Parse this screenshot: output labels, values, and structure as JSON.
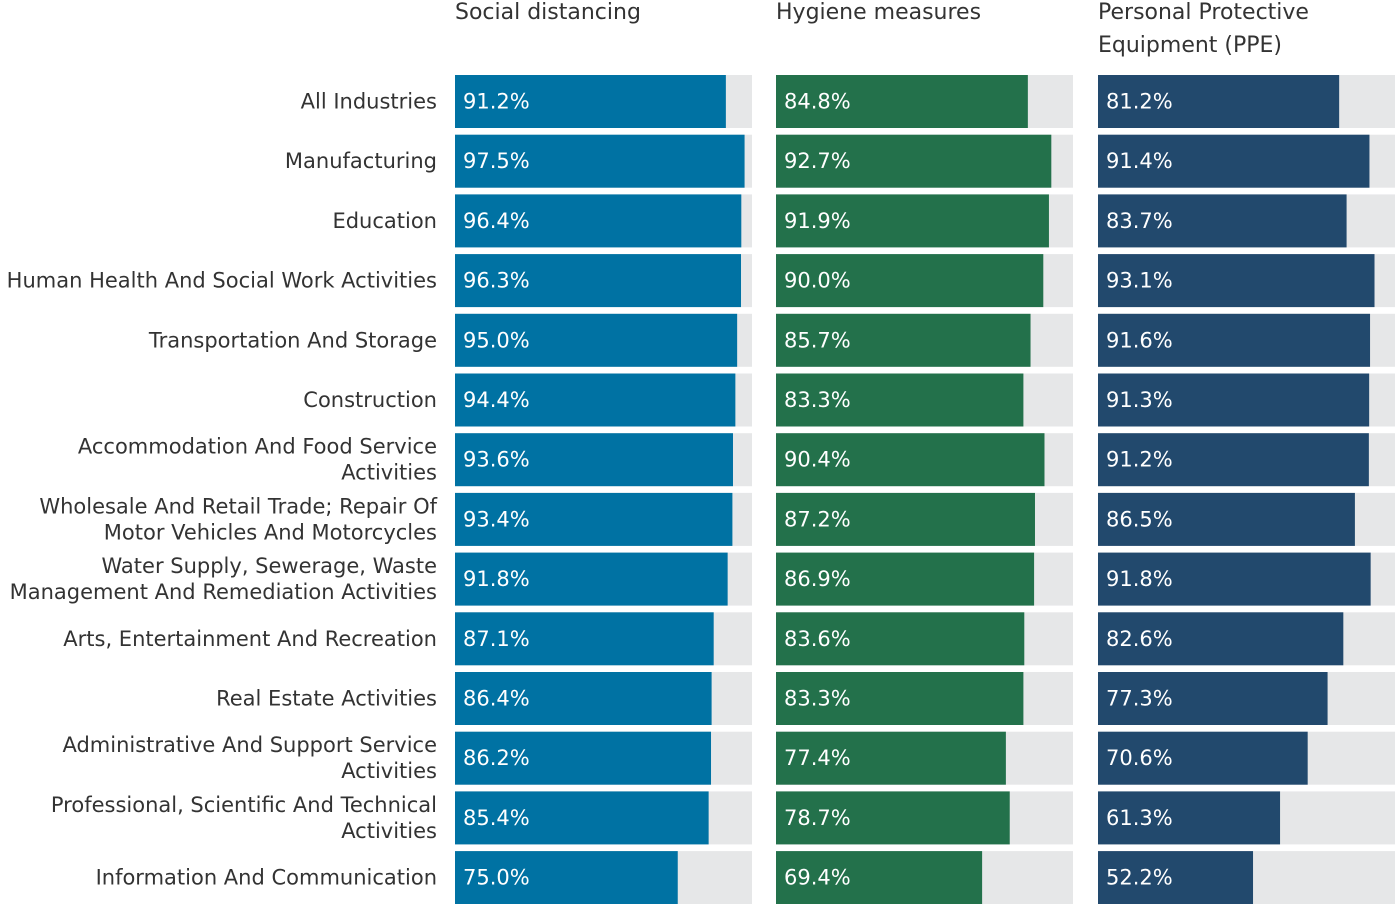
{
  "chart_data": {
    "type": "bar",
    "orientation": "horizontal",
    "layout": "small-multiples",
    "categories": [
      [
        "All Industries"
      ],
      [
        "Manufacturing"
      ],
      [
        "Education"
      ],
      [
        "Human Health And Social Work Activities"
      ],
      [
        "Transportation And Storage"
      ],
      [
        "Construction"
      ],
      [
        "Accommodation And Food Service",
        "Activities"
      ],
      [
        "Wholesale And Retail Trade; Repair Of",
        "Motor Vehicles And Motorcycles"
      ],
      [
        "Water Supply, Sewerage, Waste",
        "Management And Remediation Activities"
      ],
      [
        "Arts, Entertainment And Recreation"
      ],
      [
        "Real Estate Activities"
      ],
      [
        "Administrative And Support Service",
        "Activities"
      ],
      [
        "Professional, Scientific And Technical",
        "Activities"
      ],
      [
        "Information And Communication"
      ]
    ],
    "series": [
      {
        "name": [
          "Social distancing"
        ],
        "color": "#0072a3",
        "values": [
          91.2,
          97.5,
          96.4,
          96.3,
          95.0,
          94.4,
          93.6,
          93.4,
          91.8,
          87.1,
          86.4,
          86.2,
          85.4,
          75.0
        ],
        "labels": [
          "91.2%",
          "97.5%",
          "96.4%",
          "96.3%",
          "95.0%",
          "94.4%",
          "93.6%",
          "93.4%",
          "91.8%",
          "87.1%",
          "86.4%",
          "86.2%",
          "85.4%",
          "75.0%"
        ]
      },
      {
        "name": [
          "Hygiene measures"
        ],
        "color": "#23714b",
        "values": [
          84.8,
          92.7,
          91.9,
          90.0,
          85.7,
          83.3,
          90.4,
          87.2,
          86.9,
          83.6,
          83.3,
          77.4,
          78.7,
          69.4
        ],
        "labels": [
          "84.8%",
          "92.7%",
          "91.9%",
          "90.0%",
          "85.7%",
          "83.3%",
          "90.4%",
          "87.2%",
          "86.9%",
          "83.6%",
          "83.3%",
          "77.4%",
          "78.7%",
          "69.4%"
        ]
      },
      {
        "name": [
          "Personal Protective",
          "Equipment (PPE)"
        ],
        "color": "#22496d",
        "values": [
          81.2,
          91.4,
          83.7,
          93.1,
          91.6,
          91.3,
          91.2,
          86.5,
          91.8,
          82.6,
          77.3,
          70.6,
          61.3,
          52.2
        ],
        "labels": [
          "81.2%",
          "91.4%",
          "83.7%",
          "93.1%",
          "91.6%",
          "91.3%",
          "91.2%",
          "86.5%",
          "91.8%",
          "82.6%",
          "77.3%",
          "70.6%",
          "61.3%",
          "52.2%"
        ]
      }
    ],
    "xlim": [
      0,
      100
    ],
    "unit": "%",
    "track_color": "#e6e7e8",
    "grid": false,
    "legend": "none"
  }
}
